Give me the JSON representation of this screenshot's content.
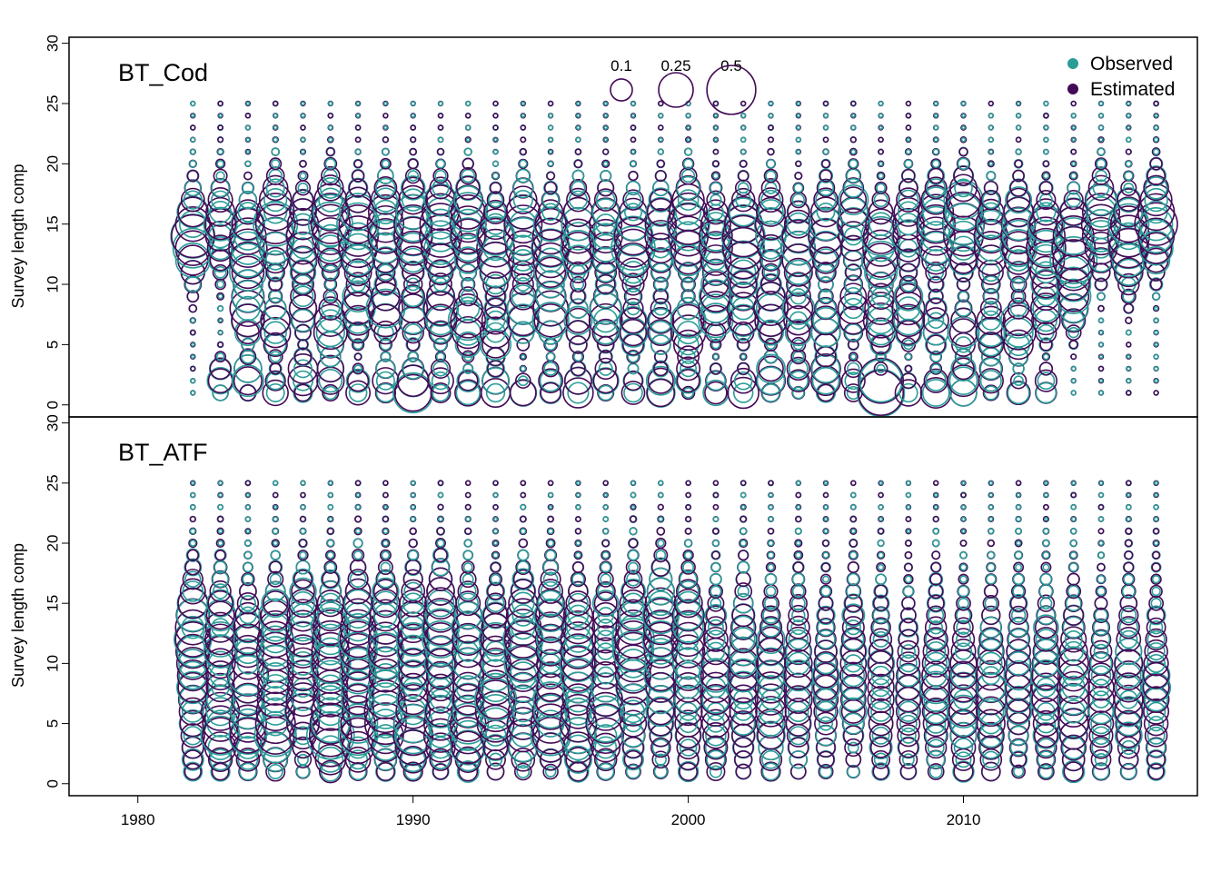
{
  "colors": {
    "observed": "#2a9d98",
    "estimated": "#440a57",
    "axis": "#000000"
  },
  "legend": {
    "entries": [
      "Observed",
      "Estimated"
    ],
    "placement": "top-right",
    "size_labels": [
      "0.1",
      "0.25",
      "0.5"
    ],
    "size_values": [
      0.1,
      0.25,
      0.5
    ]
  },
  "chart_data": {
    "type": "scatter",
    "subtype": "bubble",
    "shared_x": {
      "xlim": [
        1977.5,
        2018.5
      ],
      "ticks": [
        1980,
        1990,
        2000,
        2010
      ],
      "tick_labels": [
        "1980",
        "1990",
        "2000",
        "2010"
      ],
      "years": [
        1982,
        2017
      ]
    },
    "panels": [
      {
        "label": "BT_Cod",
        "ylabel": "Survey length comp",
        "ylim": [
          -1,
          30.5
        ],
        "yticks": [
          0,
          5,
          10,
          15,
          20,
          25,
          30
        ],
        "bins": [
          1,
          25
        ],
        "estimated_modes": [
          {
            "y": 14,
            "sd": 2.2,
            "amp": 0.33,
            "from": 1982,
            "to": 2017
          },
          {
            "y": 7,
            "sd": 1.3,
            "amp": 0.22,
            "from": 1984,
            "to": 2014
          },
          {
            "y": 1.5,
            "sd": 0.9,
            "amp": 0.18,
            "from": 1983,
            "to": 2013
          }
        ],
        "highlights": [
          {
            "year": 2007,
            "y": 1.5,
            "size": 0.42
          },
          {
            "year": 2007,
            "y": 2,
            "size": 0.34
          },
          {
            "year": 1990,
            "y": 1,
            "size": 0.28
          },
          {
            "year": 1982,
            "y": 14,
            "size": 0.38
          },
          {
            "year": 2017,
            "y": 15,
            "size": 0.38
          },
          {
            "year": 2016,
            "y": 14,
            "size": 0.36
          }
        ]
      },
      {
        "label": "BT_ATF",
        "ylabel": "Survey length comp",
        "ylim": [
          -1,
          30.5
        ],
        "yticks": [
          0,
          5,
          10,
          15,
          20,
          25,
          30
        ],
        "bins": [
          1,
          25
        ],
        "estimated_modes": [
          {
            "y": 8,
            "sd": 4.5,
            "amp": 0.18,
            "from": 1982,
            "to": 2017
          },
          {
            "y": 13,
            "sd": 2.5,
            "amp": 0.15,
            "from": 1982,
            "to": 2000
          },
          {
            "y": 5,
            "sd": 1.5,
            "amp": 0.2,
            "from": 1983,
            "to": 1997
          }
        ],
        "highlights": [
          {
            "year": 1984,
            "y": 9,
            "size": 0.35
          },
          {
            "year": 1985,
            "y": 11,
            "size": 0.3
          },
          {
            "year": 1983,
            "y": 6,
            "size": 0.3
          },
          {
            "year": 1987,
            "y": 6,
            "size": 0.3
          }
        ]
      }
    ]
  }
}
